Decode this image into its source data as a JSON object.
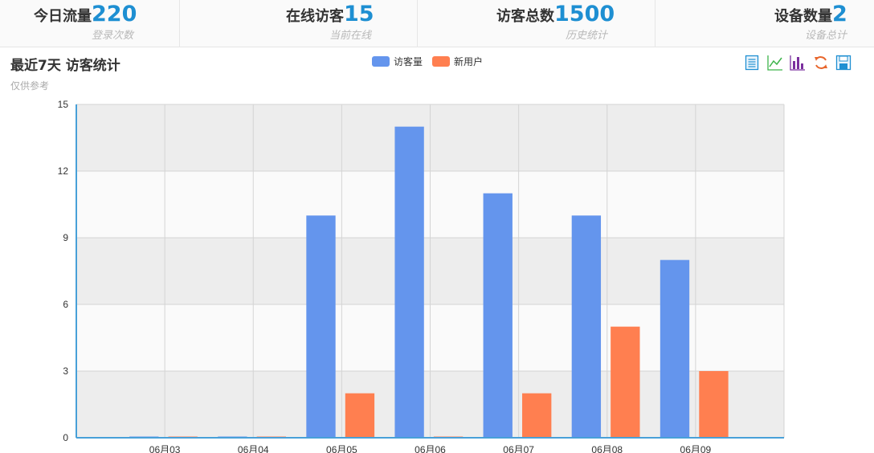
{
  "stats": [
    {
      "label": "今日流量",
      "value": "220",
      "sub": "登录次数"
    },
    {
      "label": "在线访客",
      "value": "15",
      "sub": "当前在线"
    },
    {
      "label": "访客总数",
      "value": "1500",
      "sub": "历史统计"
    },
    {
      "label": "设备数量",
      "value": "2",
      "sub": "设备总计"
    }
  ],
  "toolbox": [
    {
      "icon": "data-view-icon",
      "color": "#1e8fd2"
    },
    {
      "icon": "line-chart-icon",
      "color": "#3cb34a"
    },
    {
      "icon": "bar-chart-icon",
      "color": "#7b2f9e"
    },
    {
      "icon": "restore-icon",
      "color": "#e8662c"
    },
    {
      "icon": "save-image-icon",
      "color": "#1e8fd2"
    }
  ],
  "chart_data": {
    "type": "bar",
    "title": "最近7天 访客统计",
    "subtitle": "仅供参考",
    "categories": [
      "06月03",
      "06月04",
      "06月05",
      "06月06",
      "06月07",
      "06月08",
      "06月09"
    ],
    "series": [
      {
        "name": "访客量",
        "color": "#6495ed",
        "values": [
          0,
          0,
          10,
          14,
          11,
          10,
          8
        ]
      },
      {
        "name": "新用户",
        "color": "#ff7f50",
        "values": [
          0,
          0,
          2,
          0,
          2,
          5,
          3
        ]
      }
    ],
    "ylim": [
      0,
      15
    ],
    "yticks": [
      0,
      3,
      6,
      9,
      12,
      15
    ],
    "legend_position": "top-center",
    "grid": true
  }
}
